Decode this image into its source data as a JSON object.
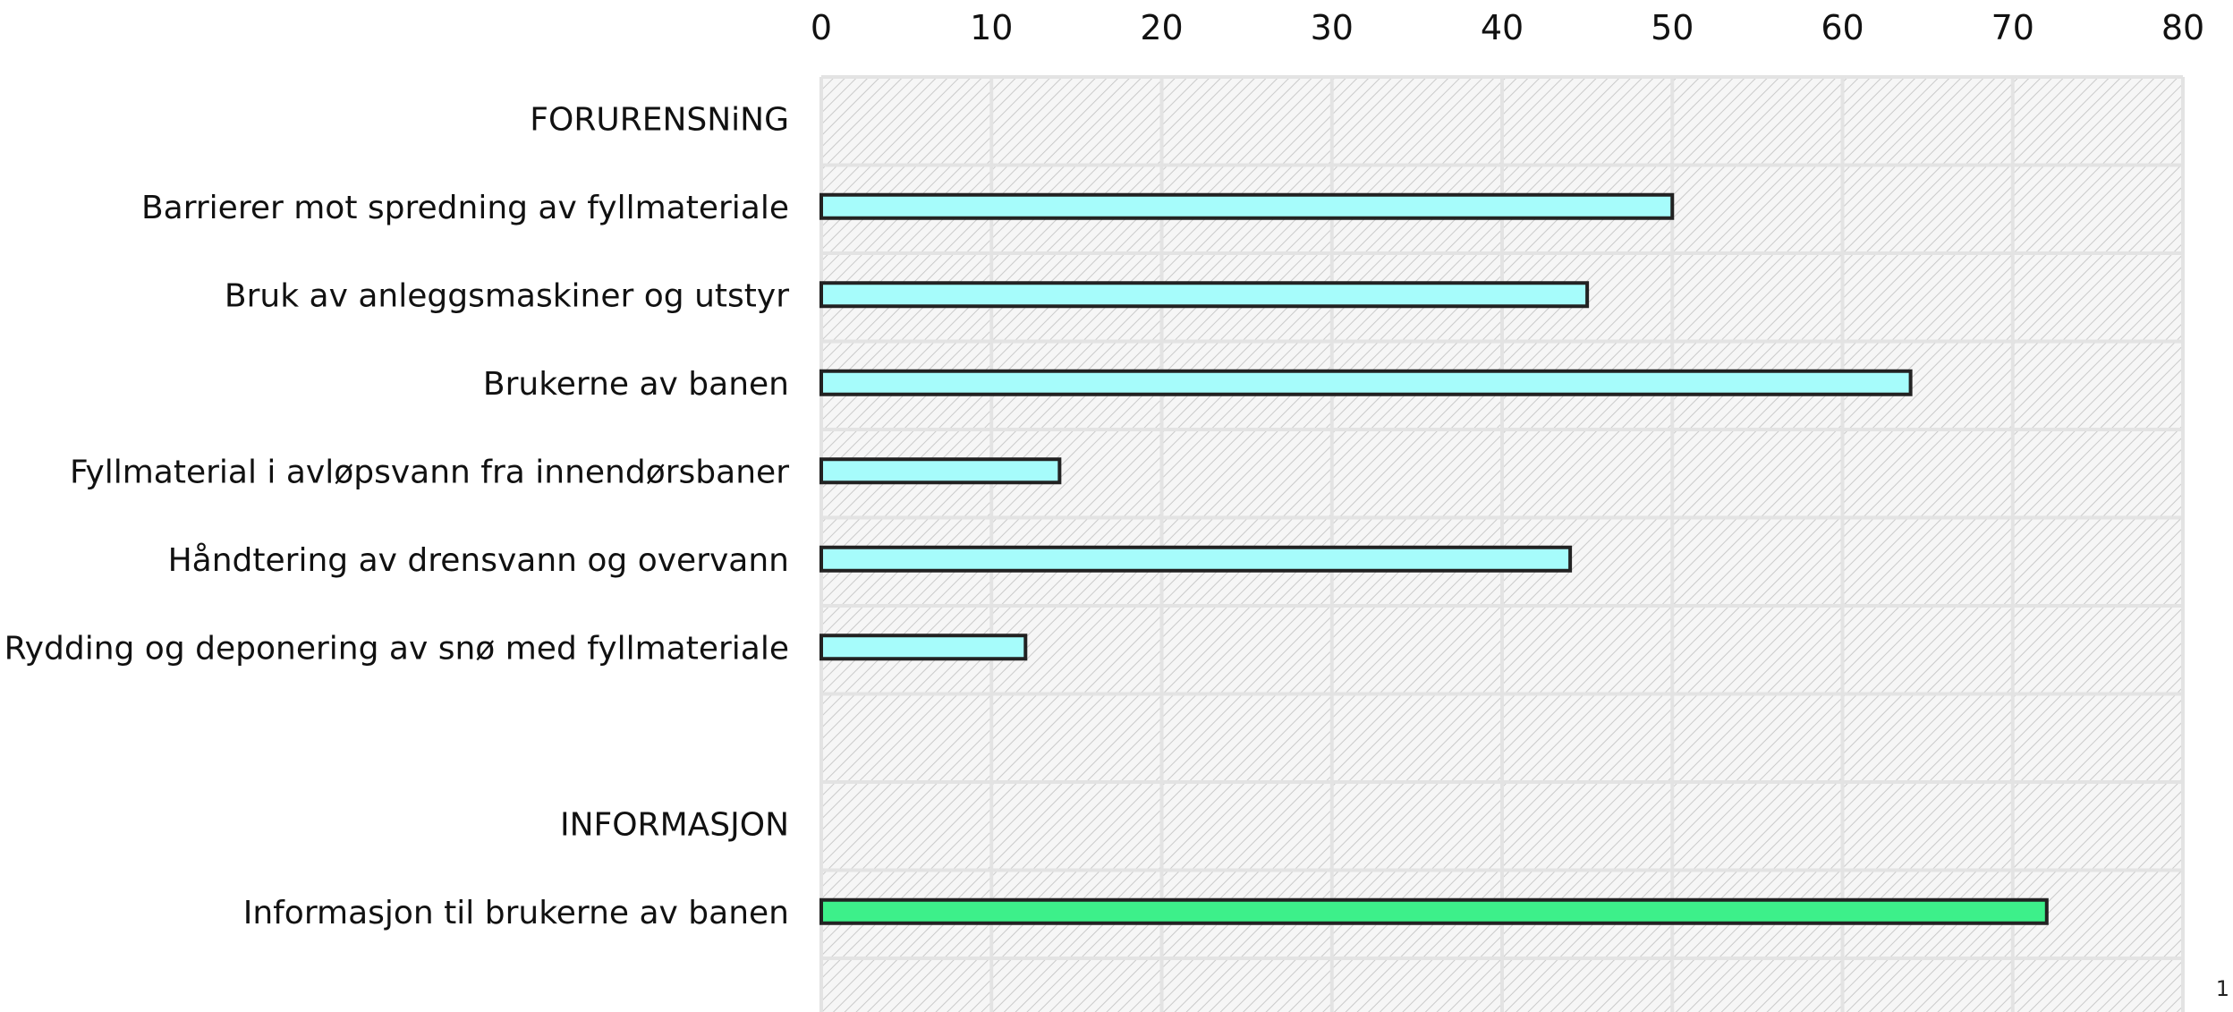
{
  "page": {
    "page_number": "1"
  },
  "chart_data": {
    "type": "bar",
    "orientation": "horizontal",
    "title": "",
    "xlabel": "",
    "ylabel": "",
    "xlim": [
      0,
      80
    ],
    "x_ticks": [
      0,
      10,
      20,
      30,
      40,
      50,
      60,
      70,
      80
    ],
    "x_axis_position": "top",
    "grid": true,
    "legend": false,
    "categories": [
      "FORURENSNiNG",
      "Barrierer mot spredning av fyllmateriale",
      "Bruk av anleggsmaskiner og utstyr",
      "Brukerne av banen",
      "Fyllmaterial i avløpsvann fra innendørsbaner",
      "Håndtering av drensvann og overvann",
      "Rydding og deponering av snø med fyllmateriale",
      "",
      "INFORMASJON",
      "Informasjon til brukerne av banen",
      ""
    ],
    "values": [
      null,
      50,
      45,
      64,
      14,
      44,
      12,
      null,
      null,
      72,
      null
    ],
    "bar_colors": [
      null,
      "#a6fcfb",
      "#a6fcfb",
      "#a6fcfb",
      "#a6fcfb",
      "#a6fcfb",
      "#a6fcfb",
      null,
      null,
      "#3df08a",
      null
    ],
    "colors": {
      "bar_outline": "#222222",
      "grid": "#e3e3e3",
      "hatch": "#c9c9c9"
    }
  }
}
